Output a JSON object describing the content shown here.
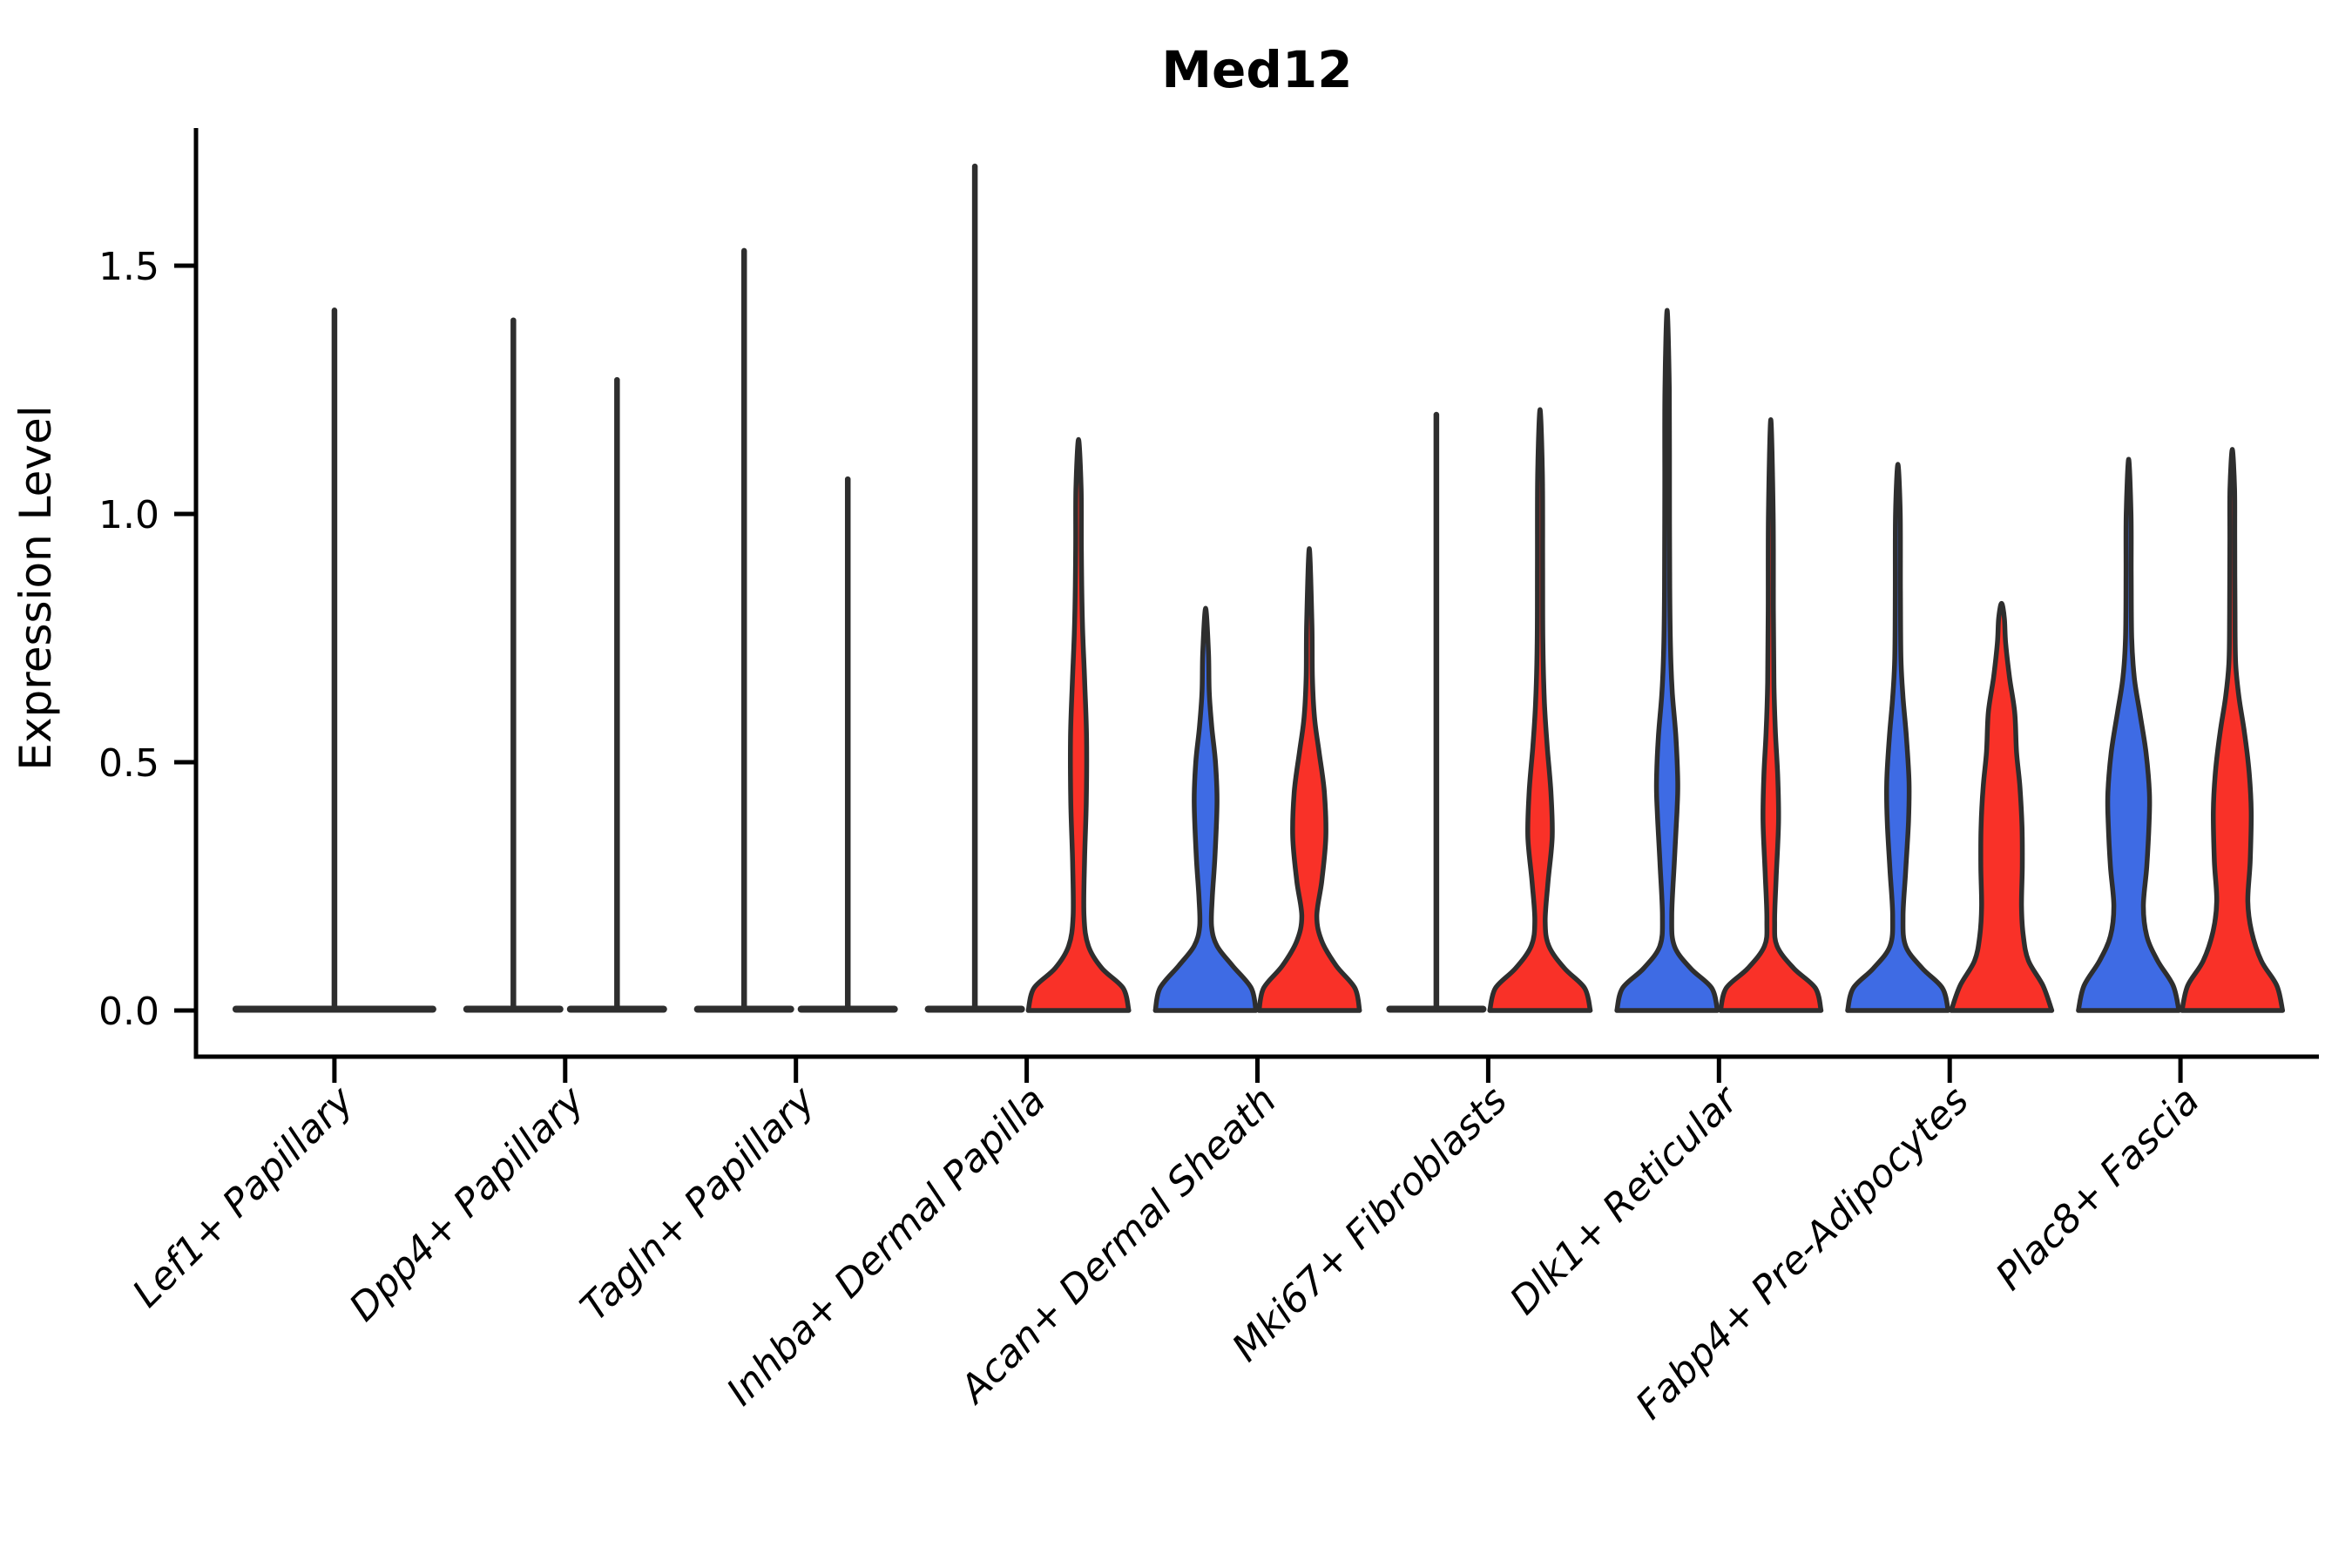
{
  "title": "Med12",
  "y_axis": {
    "label": "Expression Level",
    "tick_labels": [
      "0.0",
      "0.5",
      "1.0",
      "1.5"
    ]
  },
  "colors": {
    "condition_blue": "#3e6be4",
    "condition_red": "#f93128",
    "outline": "#2e2e2e",
    "axis": "#000000",
    "background": "#ffffff"
  },
  "chart_data": {
    "type": "violin",
    "subtype": "split-violin-expression",
    "title": "Med12",
    "ylabel": "Expression Level",
    "xlabel": "",
    "ylim": [
      0,
      1.78
    ],
    "yticks": [
      0,
      0.5,
      1.0,
      1.5
    ],
    "ytick_labels": [
      "0.0",
      "0.5",
      "1.0",
      "1.5"
    ],
    "grid": false,
    "legend_position": "none",
    "x_tick_rotation_deg": 45,
    "categories": [
      "Lef1+ Papillary",
      "Dpp4+ Papillary",
      "Tagln+ Papillary",
      "Inhba+ Dermal Papilla",
      "Acan+ Dermal Sheath",
      "Mki67+ Fibroblasts",
      "Dlk1+ Reticular",
      "Fabp4+ Pre-Adipocytes",
      "Plac8+ Fascia"
    ],
    "groups": [
      {
        "id": "blue",
        "color": "#3e6be4",
        "dodge": "left"
      },
      {
        "id": "red",
        "color": "#f93128",
        "dodge": "right"
      }
    ],
    "violins": [
      {
        "category_index": 0,
        "category": "Lef1+ Papillary",
        "group": "single",
        "side": "center",
        "span": "full",
        "shape": "flat_spike",
        "peak": 1.41
      },
      {
        "category_index": 1,
        "category": "Dpp4+ Papillary",
        "group": "blue",
        "side": "left",
        "span": "half",
        "shape": "flat_spike",
        "peak": 1.39
      },
      {
        "category_index": 1,
        "category": "Dpp4+ Papillary",
        "group": "red",
        "side": "right",
        "span": "half",
        "shape": "flat_spike",
        "peak": 1.27
      },
      {
        "category_index": 2,
        "category": "Tagln+ Papillary",
        "group": "blue",
        "side": "left",
        "span": "half",
        "shape": "flat_spike",
        "peak": 1.53
      },
      {
        "category_index": 2,
        "category": "Tagln+ Papillary",
        "group": "red",
        "side": "right",
        "span": "half",
        "shape": "flat_spike",
        "peak": 1.07
      },
      {
        "category_index": 3,
        "category": "Inhba+ Dermal Papilla",
        "group": "blue",
        "side": "left",
        "span": "half",
        "shape": "flat_spike",
        "peak": 1.7
      },
      {
        "category_index": 3,
        "category": "Inhba+ Dermal Papilla",
        "group": "red",
        "side": "right",
        "span": "half",
        "shape": "violin",
        "peak": 1.15,
        "profile": [
          [
            0,
            0.97
          ],
          [
            0.045,
            0.86
          ],
          [
            0.085,
            0.45
          ],
          [
            0.13,
            0.19
          ],
          [
            0.19,
            0.105
          ],
          [
            0.3,
            0.115
          ],
          [
            0.42,
            0.15
          ],
          [
            0.55,
            0.155
          ],
          [
            0.66,
            0.12
          ],
          [
            0.78,
            0.075
          ],
          [
            0.92,
            0.055
          ],
          [
            1.05,
            0.05
          ],
          [
            1.15,
            0
          ]
        ]
      },
      {
        "category_index": 4,
        "category": "Acan+ Dermal Sheath",
        "group": "blue",
        "side": "left",
        "span": "half",
        "shape": "violin",
        "peak": 0.81,
        "profile": [
          [
            0,
            0.97
          ],
          [
            0.045,
            0.88
          ],
          [
            0.09,
            0.52
          ],
          [
            0.13,
            0.22
          ],
          [
            0.17,
            0.115
          ],
          [
            0.23,
            0.13
          ],
          [
            0.31,
            0.18
          ],
          [
            0.42,
            0.22
          ],
          [
            0.5,
            0.19
          ],
          [
            0.57,
            0.12
          ],
          [
            0.64,
            0.07
          ],
          [
            0.72,
            0.055
          ],
          [
            0.81,
            0
          ]
        ]
      },
      {
        "category_index": 4,
        "category": "Acan+ Dermal Sheath",
        "group": "red",
        "side": "right",
        "span": "half",
        "shape": "violin",
        "peak": 0.93,
        "profile": [
          [
            0,
            0.97
          ],
          [
            0.045,
            0.88
          ],
          [
            0.09,
            0.52
          ],
          [
            0.14,
            0.24
          ],
          [
            0.19,
            0.145
          ],
          [
            0.26,
            0.24
          ],
          [
            0.35,
            0.32
          ],
          [
            0.44,
            0.29
          ],
          [
            0.52,
            0.19
          ],
          [
            0.59,
            0.1
          ],
          [
            0.67,
            0.06
          ],
          [
            0.78,
            0.05
          ],
          [
            0.93,
            0
          ]
        ]
      },
      {
        "category_index": 5,
        "category": "Mki67+ Fibroblasts",
        "group": "blue",
        "side": "left",
        "span": "half",
        "shape": "flat_spike",
        "peak": 1.2
      },
      {
        "category_index": 5,
        "category": "Mki67+ Fibroblasts",
        "group": "red",
        "side": "right",
        "span": "half",
        "shape": "violin",
        "peak": 1.21,
        "profile": [
          [
            0,
            0.97
          ],
          [
            0.045,
            0.86
          ],
          [
            0.085,
            0.47
          ],
          [
            0.13,
            0.17
          ],
          [
            0.18,
            0.1
          ],
          [
            0.26,
            0.155
          ],
          [
            0.35,
            0.235
          ],
          [
            0.44,
            0.21
          ],
          [
            0.53,
            0.14
          ],
          [
            0.62,
            0.085
          ],
          [
            0.74,
            0.055
          ],
          [
            0.9,
            0.05
          ],
          [
            1.08,
            0.045
          ],
          [
            1.21,
            0
          ]
        ]
      },
      {
        "category_index": 6,
        "category": "Dlk1+ Reticular",
        "group": "blue",
        "side": "left",
        "span": "half",
        "shape": "violin",
        "peak": 1.41,
        "profile": [
          [
            0,
            0.97
          ],
          [
            0.045,
            0.86
          ],
          [
            0.085,
            0.45
          ],
          [
            0.13,
            0.14
          ],
          [
            0.19,
            0.09
          ],
          [
            0.3,
            0.14
          ],
          [
            0.4,
            0.19
          ],
          [
            0.46,
            0.205
          ],
          [
            0.55,
            0.17
          ],
          [
            0.64,
            0.1
          ],
          [
            0.73,
            0.065
          ],
          [
            0.85,
            0.05
          ],
          [
            1.05,
            0.045
          ],
          [
            1.25,
            0.042
          ],
          [
            1.41,
            0
          ]
        ]
      },
      {
        "category_index": 6,
        "category": "Dlk1+ Reticular",
        "group": "red",
        "side": "right",
        "span": "half",
        "shape": "violin",
        "peak": 1.19,
        "profile": [
          [
            0,
            0.97
          ],
          [
            0.045,
            0.86
          ],
          [
            0.085,
            0.44
          ],
          [
            0.13,
            0.12
          ],
          [
            0.18,
            0.075
          ],
          [
            0.27,
            0.105
          ],
          [
            0.38,
            0.15
          ],
          [
            0.47,
            0.135
          ],
          [
            0.56,
            0.09
          ],
          [
            0.66,
            0.06
          ],
          [
            0.8,
            0.05
          ],
          [
            1.0,
            0.045
          ],
          [
            1.19,
            0
          ]
        ]
      },
      {
        "category_index": 7,
        "category": "Fabp4+ Pre-Adipocytes",
        "group": "blue",
        "side": "left",
        "span": "half",
        "shape": "violin",
        "peak": 1.1,
        "profile": [
          [
            0,
            0.97
          ],
          [
            0.045,
            0.86
          ],
          [
            0.085,
            0.47
          ],
          [
            0.13,
            0.15
          ],
          [
            0.19,
            0.1
          ],
          [
            0.28,
            0.15
          ],
          [
            0.38,
            0.205
          ],
          [
            0.46,
            0.215
          ],
          [
            0.55,
            0.165
          ],
          [
            0.63,
            0.1
          ],
          [
            0.71,
            0.06
          ],
          [
            0.85,
            0.05
          ],
          [
            1.0,
            0.045
          ],
          [
            1.1,
            0
          ]
        ]
      },
      {
        "category_index": 7,
        "category": "Fabp4+ Pre-Adipocytes",
        "group": "red",
        "side": "right",
        "span": "half",
        "shape": "violin",
        "peak": 0.82,
        "profile": [
          [
            0,
            0.97
          ],
          [
            0.05,
            0.8
          ],
          [
            0.1,
            0.52
          ],
          [
            0.15,
            0.42
          ],
          [
            0.21,
            0.385
          ],
          [
            0.29,
            0.4
          ],
          [
            0.37,
            0.395
          ],
          [
            0.45,
            0.355
          ],
          [
            0.52,
            0.29
          ],
          [
            0.6,
            0.255
          ],
          [
            0.67,
            0.155
          ],
          [
            0.74,
            0.08
          ],
          [
            0.79,
            0.055
          ],
          [
            0.82,
            0
          ]
        ]
      },
      {
        "category_index": 8,
        "category": "Plac8+ Fascia",
        "group": "blue",
        "side": "left",
        "span": "half",
        "shape": "violin",
        "peak": 1.11,
        "profile": [
          [
            0,
            0.97
          ],
          [
            0.05,
            0.86
          ],
          [
            0.1,
            0.56
          ],
          [
            0.15,
            0.35
          ],
          [
            0.21,
            0.285
          ],
          [
            0.29,
            0.35
          ],
          [
            0.38,
            0.395
          ],
          [
            0.44,
            0.4
          ],
          [
            0.52,
            0.335
          ],
          [
            0.6,
            0.215
          ],
          [
            0.67,
            0.11
          ],
          [
            0.75,
            0.06
          ],
          [
            0.88,
            0.05
          ],
          [
            1.0,
            0.046
          ],
          [
            1.11,
            0
          ]
        ]
      },
      {
        "category_index": 8,
        "category": "Plac8+ Fascia",
        "group": "red",
        "side": "right",
        "span": "half",
        "shape": "violin",
        "peak": 1.13,
        "profile": [
          [
            0,
            0.97
          ],
          [
            0.05,
            0.86
          ],
          [
            0.1,
            0.56
          ],
          [
            0.16,
            0.37
          ],
          [
            0.22,
            0.3
          ],
          [
            0.3,
            0.345
          ],
          [
            0.4,
            0.365
          ],
          [
            0.48,
            0.325
          ],
          [
            0.56,
            0.235
          ],
          [
            0.63,
            0.13
          ],
          [
            0.7,
            0.065
          ],
          [
            0.8,
            0.052
          ],
          [
            0.95,
            0.047
          ],
          [
            1.05,
            0.044
          ],
          [
            1.13,
            0
          ]
        ]
      }
    ]
  }
}
